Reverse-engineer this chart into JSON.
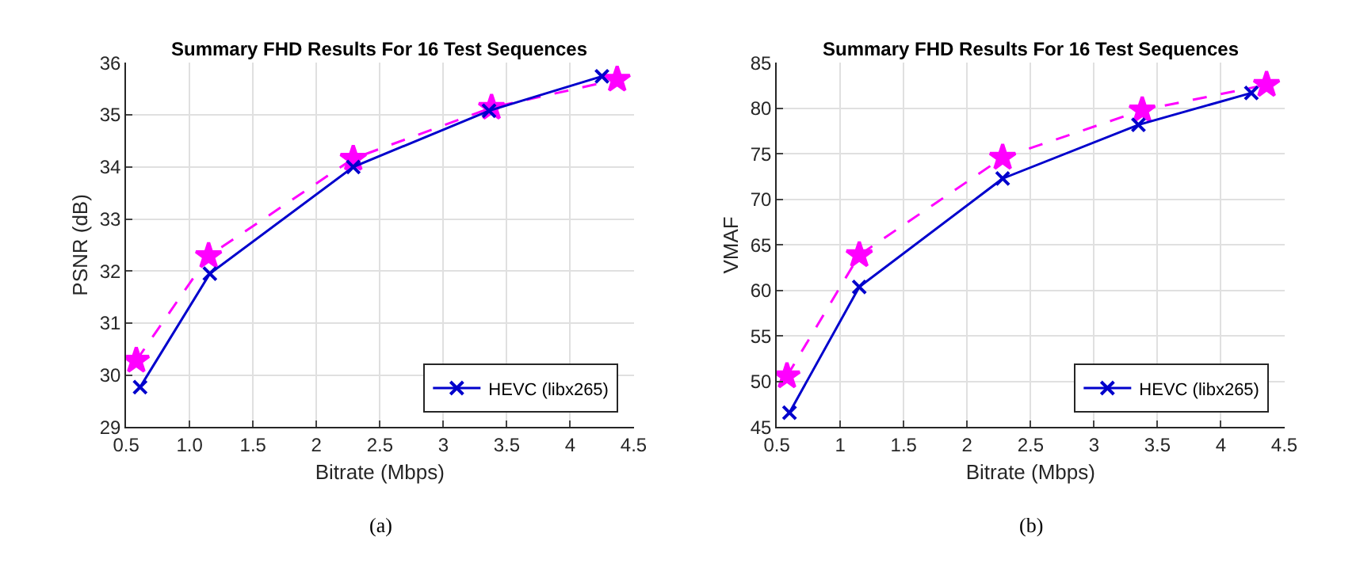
{
  "chart_data": [
    {
      "type": "line",
      "title": "Summary FHD Results For 16 Test Sequences",
      "xlabel": "Bitrate (Mbps)",
      "ylabel": "PSNR (dB)",
      "annotations": [
        "(a)"
      ],
      "xlim": [
        0.5,
        4.5
      ],
      "xticks": [
        0.5,
        {
          "value": 1,
          "label": "1.0"
        },
        1.5,
        2,
        2.5,
        3,
        3.5,
        4,
        4.5
      ],
      "ylim": [
        29,
        36
      ],
      "yticks": [
        29,
        30,
        31,
        32,
        33,
        34,
        35,
        36
      ],
      "grid": true,
      "legend": "bottom right",
      "series": [
        {
          "color": "#ff00ff",
          "marker": "star",
          "line_style": "dashed",
          "x": [
            0.58,
            1.15,
            2.29,
            3.38,
            4.37
          ],
          "values": [
            30.28,
            32.29,
            34.16,
            35.14,
            35.68
          ]
        },
        {
          "name": "HEVC (libx265)",
          "color": "#0000cc",
          "marker": "cross",
          "line_style": "solid",
          "x": [
            0.61,
            1.16,
            2.29,
            3.36,
            4.25
          ],
          "values": [
            29.77,
            31.95,
            34.0,
            35.08,
            35.74
          ]
        }
      ]
    },
    {
      "type": "line",
      "title": "Summary FHD Results For 16 Test Sequences",
      "xlabel": "Bitrate (Mbps)",
      "ylabel": "VMAF",
      "annotations": [
        "(b)"
      ],
      "xlim": [
        0.5,
        4.5
      ],
      "xticks": [
        0.5,
        1,
        1.5,
        2,
        2.5,
        3,
        3.5,
        4,
        4.5
      ],
      "ylim": [
        45,
        85
      ],
      "yticks": [
        45,
        50,
        55,
        60,
        65,
        70,
        75,
        80,
        85
      ],
      "grid": true,
      "legend": "bottom right",
      "series": [
        {
          "color": "#ff00ff",
          "marker": "star",
          "line_style": "dashed",
          "x": [
            0.58,
            1.15,
            2.28,
            3.38,
            4.36
          ],
          "values": [
            50.6,
            63.9,
            74.6,
            79.8,
            82.6
          ]
        },
        {
          "name": "HEVC (libx265)",
          "color": "#0000cc",
          "marker": "cross",
          "line_style": "solid",
          "x": [
            0.6,
            1.15,
            2.28,
            3.35,
            4.24
          ],
          "values": [
            46.6,
            60.4,
            72.3,
            78.2,
            81.7
          ]
        }
      ]
    }
  ]
}
